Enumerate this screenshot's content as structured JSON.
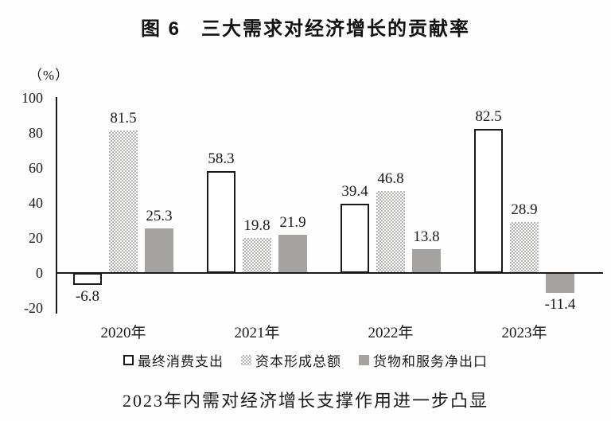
{
  "title": "图 6　三大需求对经济增长的贡献率",
  "unit_label": "（%）",
  "caption": "2023年内需对经济增长支撑作用进一步凸显",
  "colors": {
    "axis": "#1a1a1a",
    "solid_bar_gray": "#a5a2a2",
    "checker_dot_gray": "#b2afaf",
    "background": "#fdfdfd"
  },
  "chart_data": {
    "type": "bar",
    "title": "图 6　三大需求对经济增长的贡献率",
    "subtitle": "2023年内需对经济增长支撑作用进一步凸显",
    "ylabel": "（%）",
    "xlabel": "",
    "ylim": [
      -20,
      100
    ],
    "yticks": [
      100,
      80,
      60,
      40,
      20,
      0,
      -20
    ],
    "grid": false,
    "legend_position": "bottom",
    "categories": [
      "2020年",
      "2021年",
      "2022年",
      "2023年"
    ],
    "series": [
      {
        "name": "最终消费支出",
        "style": "outline",
        "values": [
          -6.8,
          58.3,
          39.4,
          82.5
        ]
      },
      {
        "name": "资本形成总额",
        "style": "checker",
        "values": [
          81.5,
          19.8,
          46.8,
          28.9
        ]
      },
      {
        "name": "货物和服务净出口",
        "style": "solid",
        "values": [
          25.3,
          21.9,
          13.8,
          -11.4
        ]
      }
    ]
  }
}
